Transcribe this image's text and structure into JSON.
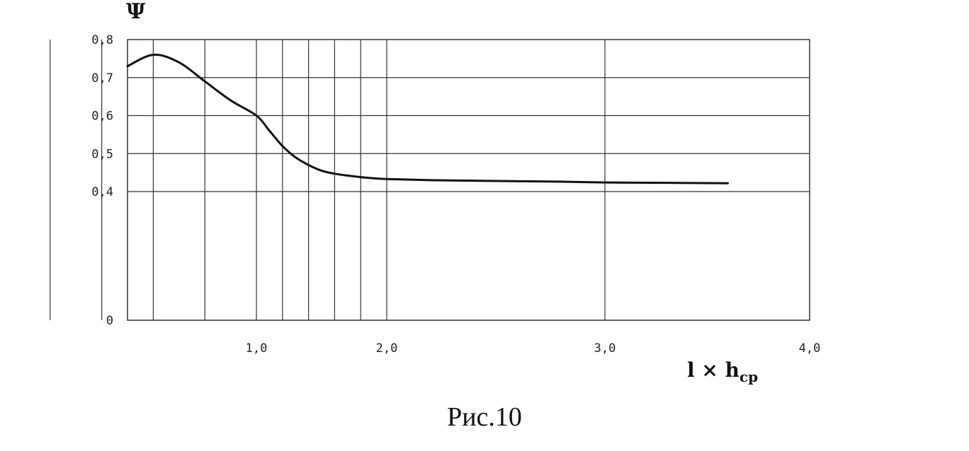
{
  "chart_data": {
    "type": "line",
    "ylabel": "Ψ",
    "xlabel": {
      "main": "l × h",
      "sub": "cp"
    },
    "y_ticks": [
      "0",
      "0,4",
      "0,5",
      "0,6",
      "0,7",
      "0,8"
    ],
    "y_tick_values": [
      0,
      0.4,
      0.5,
      0.6,
      0.7,
      0.8
    ],
    "x_ticks": [
      "1,0",
      "2,0",
      "3,0",
      "4,0"
    ],
    "x_tick_values": [
      1.0,
      2.0,
      3.0,
      4.0
    ],
    "x_gridlines": [
      0.2,
      0.4,
      0.6,
      0.8,
      1.0,
      1.2,
      1.4,
      1.6,
      1.8,
      2.0,
      3.0
    ],
    "y_gridlines": [
      0.4,
      0.5,
      0.6,
      0.7
    ],
    "xlim": [
      0.5,
      4.0
    ],
    "grid": true,
    "series": [
      {
        "x": [
          0.5,
          0.6,
          0.7,
          0.8,
          0.9,
          1.0,
          1.1,
          1.2,
          1.3,
          1.4,
          1.5,
          1.6,
          1.7,
          1.8,
          1.9,
          2.0,
          2.2,
          2.5,
          2.8,
          3.0,
          3.3,
          3.6
        ],
        "values": [
          0.73,
          0.76,
          0.74,
          0.69,
          0.64,
          0.6,
          0.56,
          0.52,
          0.49,
          0.47,
          0.455,
          0.447,
          0.442,
          0.438,
          0.435,
          0.433,
          0.43,
          0.428,
          0.426,
          0.424,
          0.423,
          0.422
        ]
      }
    ]
  },
  "caption": "Рис.10"
}
